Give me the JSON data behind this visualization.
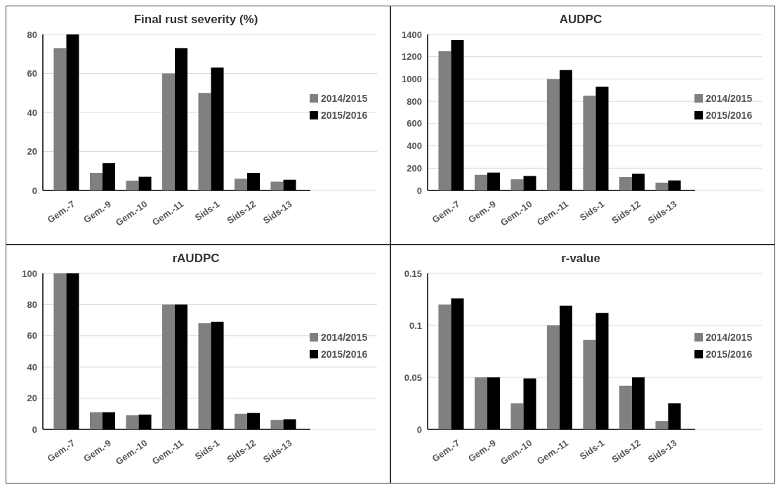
{
  "chart_data": [
    {
      "type": "bar",
      "title": "Final rust severity (%)",
      "categories": [
        "Gem.-7",
        "Gem.-9",
        "Gem.-10",
        "Gem.-11",
        "Sids-1",
        "Sids-12",
        "Sids-13"
      ],
      "series": [
        {
          "name": "2014/2015",
          "color": "#808080",
          "values": [
            73,
            9,
            5,
            60,
            50,
            6,
            4.5
          ]
        },
        {
          "name": "2015/2016",
          "color": "#000000",
          "values": [
            80,
            14,
            7,
            73,
            63,
            9,
            5.5
          ]
        }
      ],
      "ylim": [
        0,
        80
      ],
      "yticks": [
        0,
        20,
        40,
        60,
        80
      ],
      "grid": "y",
      "legend": "right"
    },
    {
      "type": "bar",
      "title": "AUDPC",
      "categories": [
        "Gem.-7",
        "Gem.-9",
        "Gem.-10",
        "Gem.-11",
        "Sids-1",
        "Sids-12",
        "Sids-13"
      ],
      "series": [
        {
          "name": "2014/2015",
          "color": "#808080",
          "values": [
            1250,
            140,
            100,
            1000,
            850,
            120,
            70
          ]
        },
        {
          "name": "2015/2016",
          "color": "#000000",
          "values": [
            1350,
            160,
            130,
            1080,
            930,
            150,
            90
          ]
        }
      ],
      "ylim": [
        0,
        1400
      ],
      "yticks": [
        0,
        200,
        400,
        600,
        800,
        1000,
        1200,
        1400
      ],
      "grid": "y",
      "legend": "right"
    },
    {
      "type": "bar",
      "title": "rAUDPC",
      "categories": [
        "Gem.-7",
        "Gem.-9",
        "Gem.-10",
        "Gem.-11",
        "Sids-1",
        "Sids-12",
        "Sids-13"
      ],
      "series": [
        {
          "name": "2014/2015",
          "color": "#808080",
          "values": [
            100,
            11,
            9,
            80,
            68,
            10,
            6
          ]
        },
        {
          "name": "2015/2016",
          "color": "#000000",
          "values": [
            100,
            11,
            9.5,
            80,
            69,
            10.5,
            6.5
          ]
        }
      ],
      "ylim": [
        0,
        100
      ],
      "yticks": [
        0,
        20,
        40,
        60,
        80,
        100
      ],
      "grid": "y",
      "legend": "right"
    },
    {
      "type": "bar",
      "title": "r-value",
      "categories": [
        "Gem.-7",
        "Gem.-9",
        "Gem.-10",
        "Gem.-11",
        "Sids-1",
        "Sids-12",
        "Sids-13"
      ],
      "series": [
        {
          "name": "2014/2015",
          "color": "#808080",
          "values": [
            0.12,
            0.05,
            0.025,
            0.1,
            0.086,
            0.042,
            0.008
          ]
        },
        {
          "name": "2015/2016",
          "color": "#000000",
          "values": [
            0.126,
            0.05,
            0.049,
            0.119,
            0.112,
            0.05,
            0.025
          ]
        }
      ],
      "ylim": [
        0,
        0.15
      ],
      "yticks": [
        0,
        0.05,
        0.1,
        0.15
      ],
      "grid": "y",
      "legend": "right"
    }
  ]
}
